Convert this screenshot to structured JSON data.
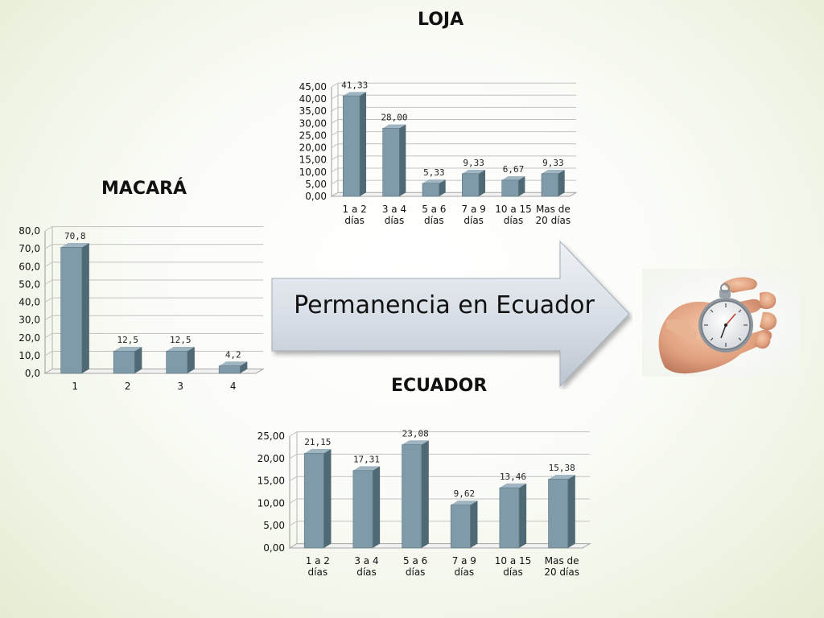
{
  "chart_data": [
    {
      "type": "bar",
      "title": "LOJA",
      "categories": [
        "1 a 2|días",
        "3 a 4|días",
        "5 a 6|días",
        "7 a 9|días",
        "10 a 15|días",
        "Mas de|20 días"
      ],
      "values": [
        41.33,
        28.0,
        5.33,
        9.33,
        6.67,
        9.33
      ],
      "value_labels": [
        "41,33",
        "28,00",
        "5,33",
        "9,33",
        "6,67",
        "9,33"
      ],
      "yticks": [
        "0,00",
        "5,00",
        "10,00",
        "15,00",
        "20,00",
        "25,00",
        "30,00",
        "35,00",
        "40,00",
        "45,00"
      ],
      "ylim": [
        0,
        45
      ],
      "grid": true
    },
    {
      "type": "bar",
      "title": "MACARÁ",
      "categories": [
        "1",
        "2",
        "3",
        "4"
      ],
      "values": [
        70.8,
        12.5,
        12.5,
        4.2
      ],
      "value_labels": [
        "70,8",
        "12,5",
        "12,5",
        "4,2"
      ],
      "yticks": [
        "0,0",
        "10,0",
        "20,0",
        "30,0",
        "40,0",
        "50,0",
        "60,0",
        "70,0",
        "80,0"
      ],
      "ylim": [
        0,
        80
      ],
      "grid": true
    },
    {
      "type": "bar",
      "title": "ECUADOR",
      "categories": [
        "1 a 2|días",
        "3 a 4|días",
        "5 a 6|días",
        "7 a 9|días",
        "10 a 15|días",
        "Mas de|20 días"
      ],
      "values": [
        21.15,
        17.31,
        23.08,
        9.62,
        13.46,
        15.38
      ],
      "value_labels": [
        "21,15",
        "17,31",
        "23,08",
        "9,62",
        "13,46",
        "15,38"
      ],
      "yticks": [
        "0,00",
        "5,00",
        "10,00",
        "15,00",
        "20,00",
        "25,00"
      ],
      "ylim": [
        0,
        25
      ],
      "grid": true
    }
  ],
  "arrow": {
    "text": "Permanencia en Ecuador"
  },
  "colors": {
    "bar_front": "#7f9aa8",
    "bar_side": "#4f6975",
    "bar_top": "#9fb6c2"
  },
  "image": {
    "icon": "stopwatch-in-hand-icon"
  }
}
